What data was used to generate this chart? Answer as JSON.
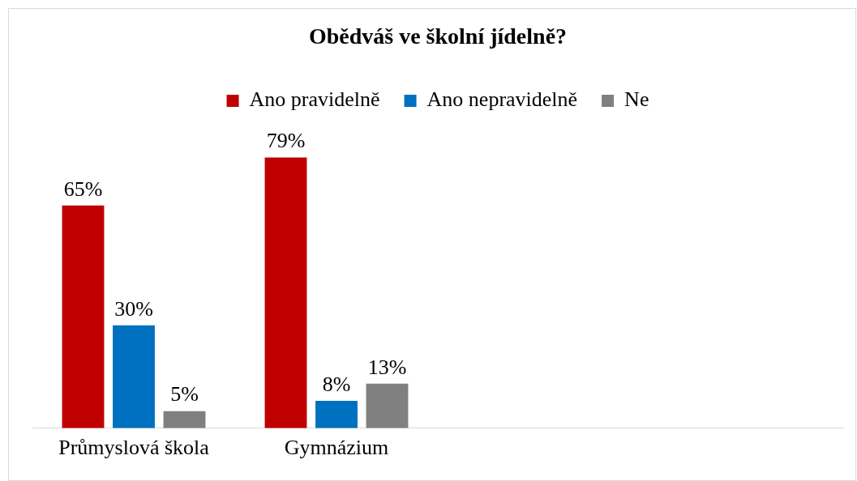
{
  "chart_data": {
    "type": "bar",
    "title": "Obědváš ve školní jídelně?",
    "categories": [
      "Průmyslová škola",
      "Gymnázium",
      null,
      null
    ],
    "series": [
      {
        "name": "Ano pravidelně",
        "color": "#c00000",
        "values": [
          65,
          79,
          null,
          null
        ],
        "value_labels": [
          "65%",
          "79%",
          null,
          null
        ]
      },
      {
        "name": "Ano nepravidelně",
        "color": "#0070c0",
        "values": [
          30,
          8,
          null,
          null
        ],
        "value_labels": [
          "30%",
          "8%",
          null,
          null
        ]
      },
      {
        "name": "Ne",
        "color": "#808080",
        "values": [
          5,
          13,
          null,
          null
        ],
        "value_labels": [
          "5%",
          "13%",
          null,
          null
        ]
      }
    ],
    "legend": "top",
    "grid": false
  }
}
